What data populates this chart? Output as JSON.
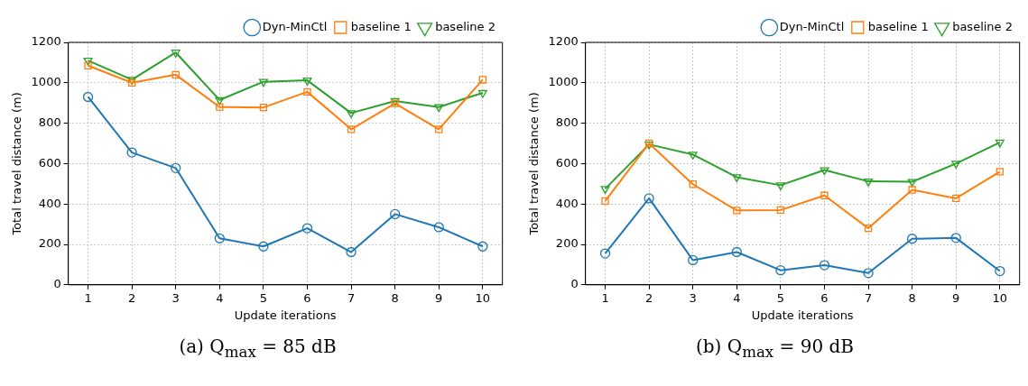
{
  "chart_data": [
    {
      "type": "line",
      "xlabel": "Update iterations",
      "ylabel": "Total travel distance (m)",
      "annotations": [
        "(a) Q$_{max}$ = 85 dB"
      ],
      "x": [
        1,
        2,
        3,
        4,
        5,
        6,
        7,
        8,
        9,
        10
      ],
      "xlim": [
        0.55,
        10.45
      ],
      "xticks": [
        1,
        2,
        3,
        4,
        5,
        6,
        7,
        8,
        9,
        10
      ],
      "ylim": [
        0,
        1200
      ],
      "yticks": [
        0,
        200,
        400,
        600,
        800,
        1000,
        1200
      ],
      "grid": true,
      "legend": "top right",
      "series": [
        {
          "name": "Dyn-MinCtl",
          "color": "#1f77b4",
          "marker": "circle",
          "values": [
            930,
            655,
            578,
            230,
            190,
            280,
            162,
            350,
            285,
            190
          ]
        },
        {
          "name": "baseline 1",
          "color": "#ff7f0e",
          "marker": "square",
          "values": [
            1085,
            1000,
            1040,
            880,
            878,
            955,
            770,
            898,
            770,
            1015
          ]
        },
        {
          "name": "baseline 2",
          "color": "#2ca02c",
          "marker": "triangle",
          "values": [
            1110,
            1015,
            1150,
            915,
            1005,
            1012,
            850,
            910,
            880,
            950
          ]
        }
      ]
    },
    {
      "type": "line",
      "xlabel": "Update iterations",
      "ylabel": "Total travel distance (m)",
      "annotations": [
        "(b) Q$_{max}$ = 90 dB"
      ],
      "x": [
        1,
        2,
        3,
        4,
        5,
        6,
        7,
        8,
        9,
        10
      ],
      "xlim": [
        0.55,
        10.45
      ],
      "xticks": [
        1,
        2,
        3,
        4,
        5,
        6,
        7,
        8,
        9,
        10
      ],
      "ylim": [
        0,
        1200
      ],
      "yticks": [
        0,
        200,
        400,
        600,
        800,
        1000,
        1200
      ],
      "grid": true,
      "legend": "top right",
      "series": [
        {
          "name": "Dyn-MinCtl",
          "color": "#1f77b4",
          "marker": "circle",
          "values": [
            155,
            428,
            122,
            162,
            72,
            97,
            58,
            228,
            232,
            68
          ]
        },
        {
          "name": "baseline 1",
          "color": "#ff7f0e",
          "marker": "square",
          "values": [
            415,
            700,
            498,
            368,
            370,
            442,
            280,
            470,
            428,
            560
          ]
        },
        {
          "name": "baseline 2",
          "color": "#2ca02c",
          "marker": "triangle",
          "values": [
            475,
            695,
            645,
            533,
            493,
            568,
            512,
            510,
            600,
            705
          ]
        }
      ]
    }
  ]
}
